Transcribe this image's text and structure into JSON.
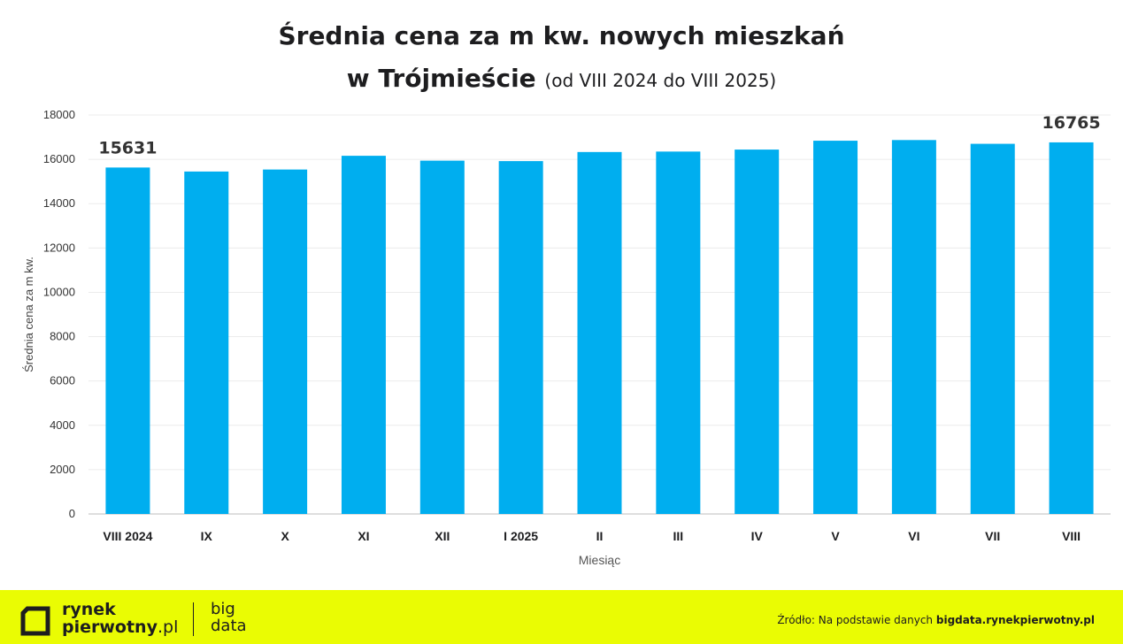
{
  "title_line1": "Średnia cena za m kw. nowych mieszkań",
  "title_line2_bold": "w Trójmieście",
  "title_line2_sub": "(od VIII 2024 do VIII 2025)",
  "chart_data": {
    "type": "bar",
    "title": "Średnia cena za m kw. nowych mieszkań w Trójmieście (od VIII 2024 do VIII 2025)",
    "xlabel": "Miesiąc",
    "ylabel": "Średnia cena za m kw.",
    "categories": [
      "VIII 2024",
      "IX",
      "X",
      "XI",
      "XII",
      "I 2025",
      "II",
      "III",
      "IV",
      "V",
      "VI",
      "VII",
      "VIII"
    ],
    "values": [
      15631,
      15450,
      15540,
      16160,
      15940,
      15920,
      16330,
      16350,
      16440,
      16840,
      16870,
      16700,
      16765
    ],
    "ylim": [
      0,
      18000
    ],
    "yticks": [
      0,
      2000,
      4000,
      6000,
      8000,
      10000,
      12000,
      14000,
      16000,
      18000
    ],
    "data_labels": [
      {
        "index": 0,
        "text": "15631"
      },
      {
        "index": 12,
        "text": "16765"
      }
    ],
    "bar_color": "#00aeef",
    "grid": true
  },
  "footer": {
    "brand_line1": "rynek",
    "brand_line2": "pierwotny",
    "brand_suffix": ".pl",
    "bigdata_line1": "big",
    "bigdata_line2": "data",
    "source_prefix": "Źródło: Na podstawie danych",
    "source_site": "bigdata.rynekpierwotny.pl",
    "background": "#eafc03"
  }
}
